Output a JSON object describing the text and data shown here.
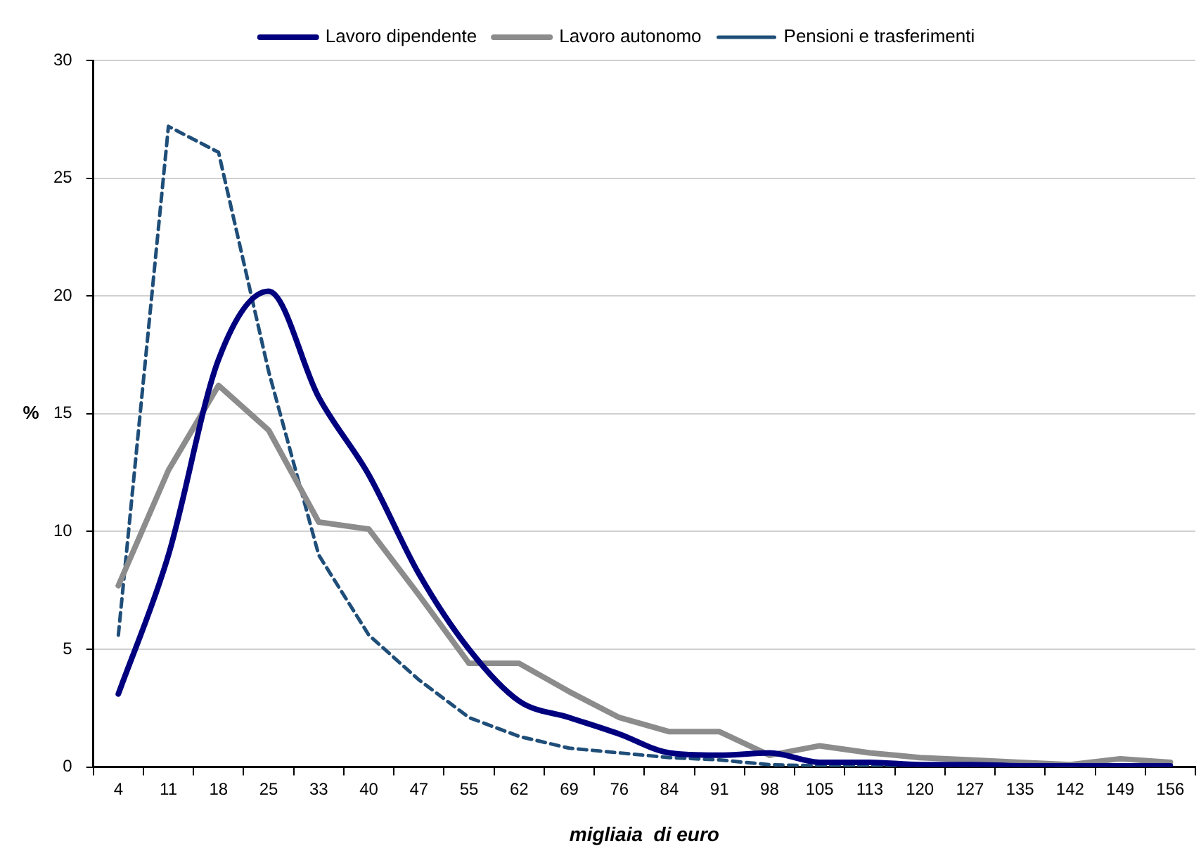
{
  "chart_data": {
    "type": "line",
    "xlabel": "migliaia  di euro",
    "ylabel": "%",
    "categories": [
      "4",
      "11",
      "18",
      "25",
      "33",
      "40",
      "47",
      "55",
      "62",
      "69",
      "76",
      "84",
      "91",
      "98",
      "105",
      "113",
      "120",
      "127",
      "135",
      "142",
      "149",
      "156"
    ],
    "series": [
      {
        "name": "Lavoro dipendente",
        "color": "#00007f",
        "values": [
          3.1,
          9.0,
          17.3,
          20.2,
          15.7,
          12.4,
          8.2,
          5.0,
          2.8,
          2.1,
          1.4,
          0.6,
          0.5,
          0.6,
          0.2,
          0.2,
          0.1,
          0.1,
          0.05,
          0.05,
          0.05,
          0.05
        ]
      },
      {
        "name": "Lavoro autonomo",
        "color": "#8c8c8c",
        "values": [
          7.7,
          12.6,
          16.2,
          14.3,
          10.4,
          10.1,
          7.3,
          4.4,
          4.4,
          3.2,
          2.1,
          1.5,
          1.5,
          0.5,
          0.9,
          0.6,
          0.4,
          0.3,
          0.2,
          0.1,
          0.35,
          0.2
        ]
      },
      {
        "name": "Pensioni e trasferimenti",
        "color": "#1f4e79",
        "line_style": "dashed",
        "values": [
          5.6,
          27.2,
          26.1,
          16.8,
          9.0,
          5.6,
          3.7,
          2.1,
          1.3,
          0.8,
          0.6,
          0.4,
          0.3,
          0.1,
          0.05,
          0.05,
          0.05,
          0.05,
          0.05,
          0.05,
          0.05,
          0.05
        ]
      }
    ],
    "ylim": [
      0,
      30
    ],
    "yticks": [
      0,
      5,
      10,
      15,
      20,
      25,
      30
    ],
    "grid": "y",
    "legend": "top",
    "marker": "none"
  }
}
